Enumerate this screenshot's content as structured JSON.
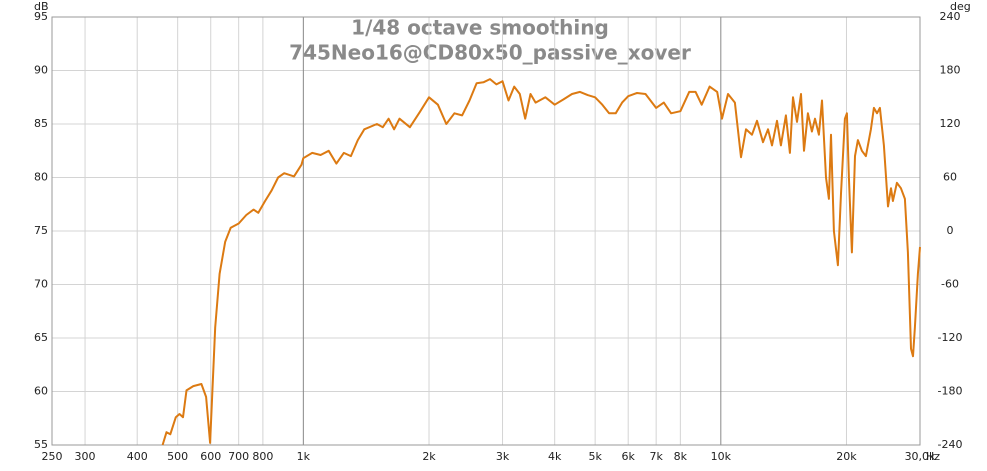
{
  "chart_data": {
    "type": "line",
    "title": "1/48 octave smoothing",
    "subtitle": "745Neo16@CD80x50_passive_xover",
    "y_unit": "dB",
    "y2_unit": "deg",
    "x_unit": "Hz",
    "xscale": "log",
    "grid": true,
    "color": "#dc7a12",
    "xlim": [
      250,
      30000
    ],
    "xticks": [
      250,
      300,
      400,
      500,
      600,
      700,
      800,
      {
        "value": 1000,
        "label": "1k"
      },
      {
        "value": 2000,
        "label": "2k"
      },
      {
        "value": 3000,
        "label": "3k"
      },
      {
        "value": 4000,
        "label": "4k"
      },
      {
        "value": 5000,
        "label": "5k"
      },
      {
        "value": 6000,
        "label": "6k"
      },
      {
        "value": 7000,
        "label": "7k"
      },
      {
        "value": 8000,
        "label": "8k"
      },
      {
        "value": 10000,
        "label": "10k"
      },
      {
        "value": 20000,
        "label": "20k"
      },
      {
        "value": 30000,
        "label": "30,0k"
      }
    ],
    "ylim": [
      55,
      95
    ],
    "yticks": [
      55,
      60,
      65,
      70,
      75,
      80,
      85,
      90,
      95
    ],
    "y2lim": [
      -240,
      240
    ],
    "y2ticks": [
      -240,
      -180,
      -120,
      -60,
      0,
      60,
      120,
      180,
      240
    ],
    "x": [
      460,
      470,
      480,
      495,
      505,
      515,
      525,
      545,
      570,
      585,
      598,
      615,
      630,
      650,
      670,
      700,
      730,
      760,
      780,
      810,
      840,
      870,
      900,
      950,
      990,
      1000,
      1050,
      1100,
      1150,
      1200,
      1250,
      1300,
      1350,
      1400,
      1500,
      1550,
      1600,
      1650,
      1700,
      1800,
      1900,
      2000,
      2100,
      2200,
      2300,
      2400,
      2500,
      2600,
      2700,
      2800,
      2900,
      3000,
      3100,
      3200,
      3300,
      3400,
      3500,
      3600,
      3800,
      4000,
      4200,
      4400,
      4600,
      4800,
      5000,
      5200,
      5400,
      5600,
      5800,
      6000,
      6300,
      6600,
      7000,
      7300,
      7600,
      8000,
      8400,
      8700,
      9000,
      9400,
      9800,
      10065,
      10405,
      10810,
      11175,
      11490,
      11875,
      12210,
      12620,
      12970,
      13260,
      13630,
      13930,
      14320,
      14640,
      14890,
      15220,
      15560,
      15820,
      16170,
      16530,
      16810,
      17180,
      17470,
      17860,
      18150,
      18360,
      18660,
      19080,
      19400,
      19830,
      20050,
      20270,
      20610,
      20960,
      21300,
      21780,
      22260,
      22880,
      23270,
      23660,
      24050,
      24590,
      25140,
      25560,
      25840,
      26410,
      27000,
      27610,
      28070,
      28540,
      28860,
      29170,
      29660,
      30000
    ],
    "values": [
      55,
      56.2,
      56,
      57.6,
      57.9,
      57.6,
      60.1,
      60.5,
      60.7,
      59.5,
      55.2,
      66,
      71,
      74,
      75.3,
      75.7,
      76.5,
      77,
      76.7,
      77.8,
      78.8,
      80,
      80.4,
      80.1,
      81.2,
      81.8,
      82.3,
      82.1,
      82.5,
      81.3,
      82.3,
      82,
      83.5,
      84.5,
      85,
      84.7,
      85.5,
      84.5,
      85.5,
      84.7,
      86.1,
      87.5,
      86.8,
      85,
      86,
      85.8,
      87.2,
      88.8,
      88.9,
      89.2,
      88.7,
      89,
      87.2,
      88.5,
      87.8,
      85.5,
      87.8,
      87,
      87.5,
      86.8,
      87.3,
      87.8,
      88,
      87.7,
      87.5,
      86.8,
      86,
      86,
      87,
      87.6,
      87.9,
      87.8,
      86.5,
      87,
      86,
      86.2,
      88,
      88,
      86.8,
      88.5,
      88,
      85.5,
      87.8,
      87,
      81.9,
      84.5,
      84,
      85.3,
      83.3,
      84.5,
      83,
      85.3,
      83,
      85.8,
      82.3,
      87.5,
      85.2,
      87.8,
      82.5,
      86,
      84.3,
      85.5,
      84,
      87.2,
      80,
      78,
      84,
      75,
      71.8,
      78.5,
      85.5,
      86,
      80,
      73,
      82,
      83.5,
      82.5,
      82,
      84.5,
      86.5,
      86,
      86.5,
      83,
      77.3,
      79,
      77.8,
      79.5,
      79,
      78,
      73,
      64,
      63.3,
      66,
      71,
      73.5
    ]
  }
}
